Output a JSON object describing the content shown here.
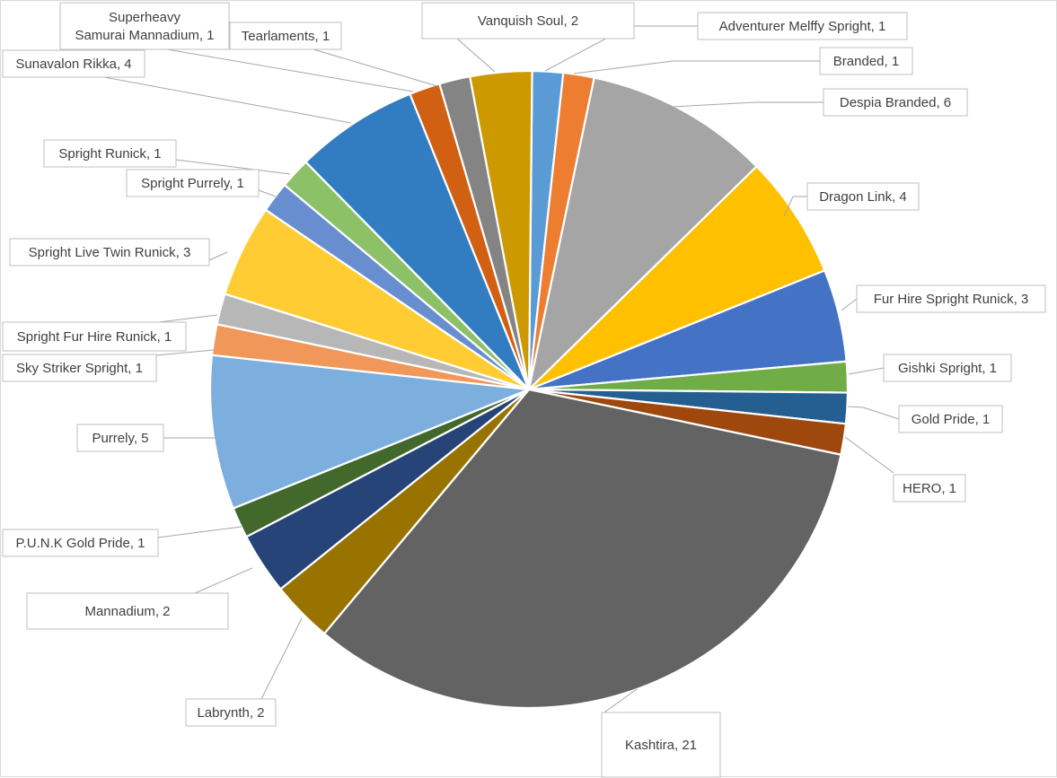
{
  "chart_data": {
    "type": "pie",
    "title": "",
    "legend": "none",
    "data_labels": "category name, value",
    "slices": [
      {
        "name": "Adventurer Melffy Spright",
        "value": 1,
        "color": "#5b9bd5"
      },
      {
        "name": "Branded",
        "value": 1,
        "color": "#ed7d31"
      },
      {
        "name": "Despia Branded",
        "value": 6,
        "color": "#a5a5a5"
      },
      {
        "name": "Dragon Link",
        "value": 4,
        "color": "#ffc000"
      },
      {
        "name": "Fur Hire Spright Runick",
        "value": 3,
        "color": "#4472c4"
      },
      {
        "name": "Gishki Spright",
        "value": 1,
        "color": "#70ad47"
      },
      {
        "name": "Gold Pride",
        "value": 1,
        "color": "#255e91"
      },
      {
        "name": "HERO",
        "value": 1,
        "color": "#9e480e"
      },
      {
        "name": "Kashtira",
        "value": 21,
        "color": "#636363"
      },
      {
        "name": "Labrynth",
        "value": 2,
        "color": "#997300"
      },
      {
        "name": "Mannadium",
        "value": 2,
        "color": "#264478"
      },
      {
        "name": "P.U.N.K Gold Pride",
        "value": 1,
        "color": "#43682b"
      },
      {
        "name": "Purrely",
        "value": 5,
        "color": "#7cafdd"
      },
      {
        "name": "Sky Striker Spright",
        "value": 1,
        "color": "#f1975a"
      },
      {
        "name": "Spright Fur Hire Runick",
        "value": 1,
        "color": "#b7b7b7"
      },
      {
        "name": "Spright Live Twin Runick",
        "value": 3,
        "color": "#ffcd33"
      },
      {
        "name": "Spright Purrely",
        "value": 1,
        "color": "#698ed0"
      },
      {
        "name": "Spright Runick",
        "value": 1,
        "color": "#8cc168"
      },
      {
        "name": "Sunavalon Rikka",
        "value": 4,
        "color": "#327dc2"
      },
      {
        "name": "Superheavy Samurai Mannadium",
        "value": 1,
        "color": "#d26012"
      },
      {
        "name": "Tearlaments",
        "value": 1,
        "color": "#848484"
      },
      {
        "name": "Vanquish Soul",
        "value": 2,
        "color": "#cc9a00"
      }
    ]
  },
  "labels": [
    {
      "lines": [
        "Adventurer Melffy Spright, 1"
      ]
    },
    {
      "lines": [
        "Branded, 1"
      ]
    },
    {
      "lines": [
        "Despia Branded, 6"
      ]
    },
    {
      "lines": [
        "Dragon Link, 4"
      ]
    },
    {
      "lines": [
        "Fur Hire Spright Runick, 3"
      ]
    },
    {
      "lines": [
        "Gishki Spright, 1"
      ]
    },
    {
      "lines": [
        "Gold Pride, 1"
      ]
    },
    {
      "lines": [
        "HERO, 1"
      ]
    },
    {
      "lines": [
        "Kashtira, 21"
      ]
    },
    {
      "lines": [
        "Labrynth, 2"
      ]
    },
    {
      "lines": [
        "Mannadium, 2"
      ]
    },
    {
      "lines": [
        "P.U.N.K Gold Pride, 1"
      ]
    },
    {
      "lines": [
        "Purrely, 5"
      ]
    },
    {
      "lines": [
        "Sky Striker Spright, 1"
      ]
    },
    {
      "lines": [
        "Spright Fur Hire Runick, 1"
      ]
    },
    {
      "lines": [
        "Spright Live Twin Runick, 3"
      ]
    },
    {
      "lines": [
        "Spright Purrely, 1"
      ]
    },
    {
      "lines": [
        "Spright Runick, 1"
      ]
    },
    {
      "lines": [
        "Sunavalon Rikka, 4"
      ]
    },
    {
      "lines": [
        "Superheavy",
        "Samurai Mannadium, 1"
      ]
    },
    {
      "lines": [
        "Tearlaments, 1"
      ]
    },
    {
      "lines": [
        "Vanquish Soul, 2"
      ]
    }
  ]
}
